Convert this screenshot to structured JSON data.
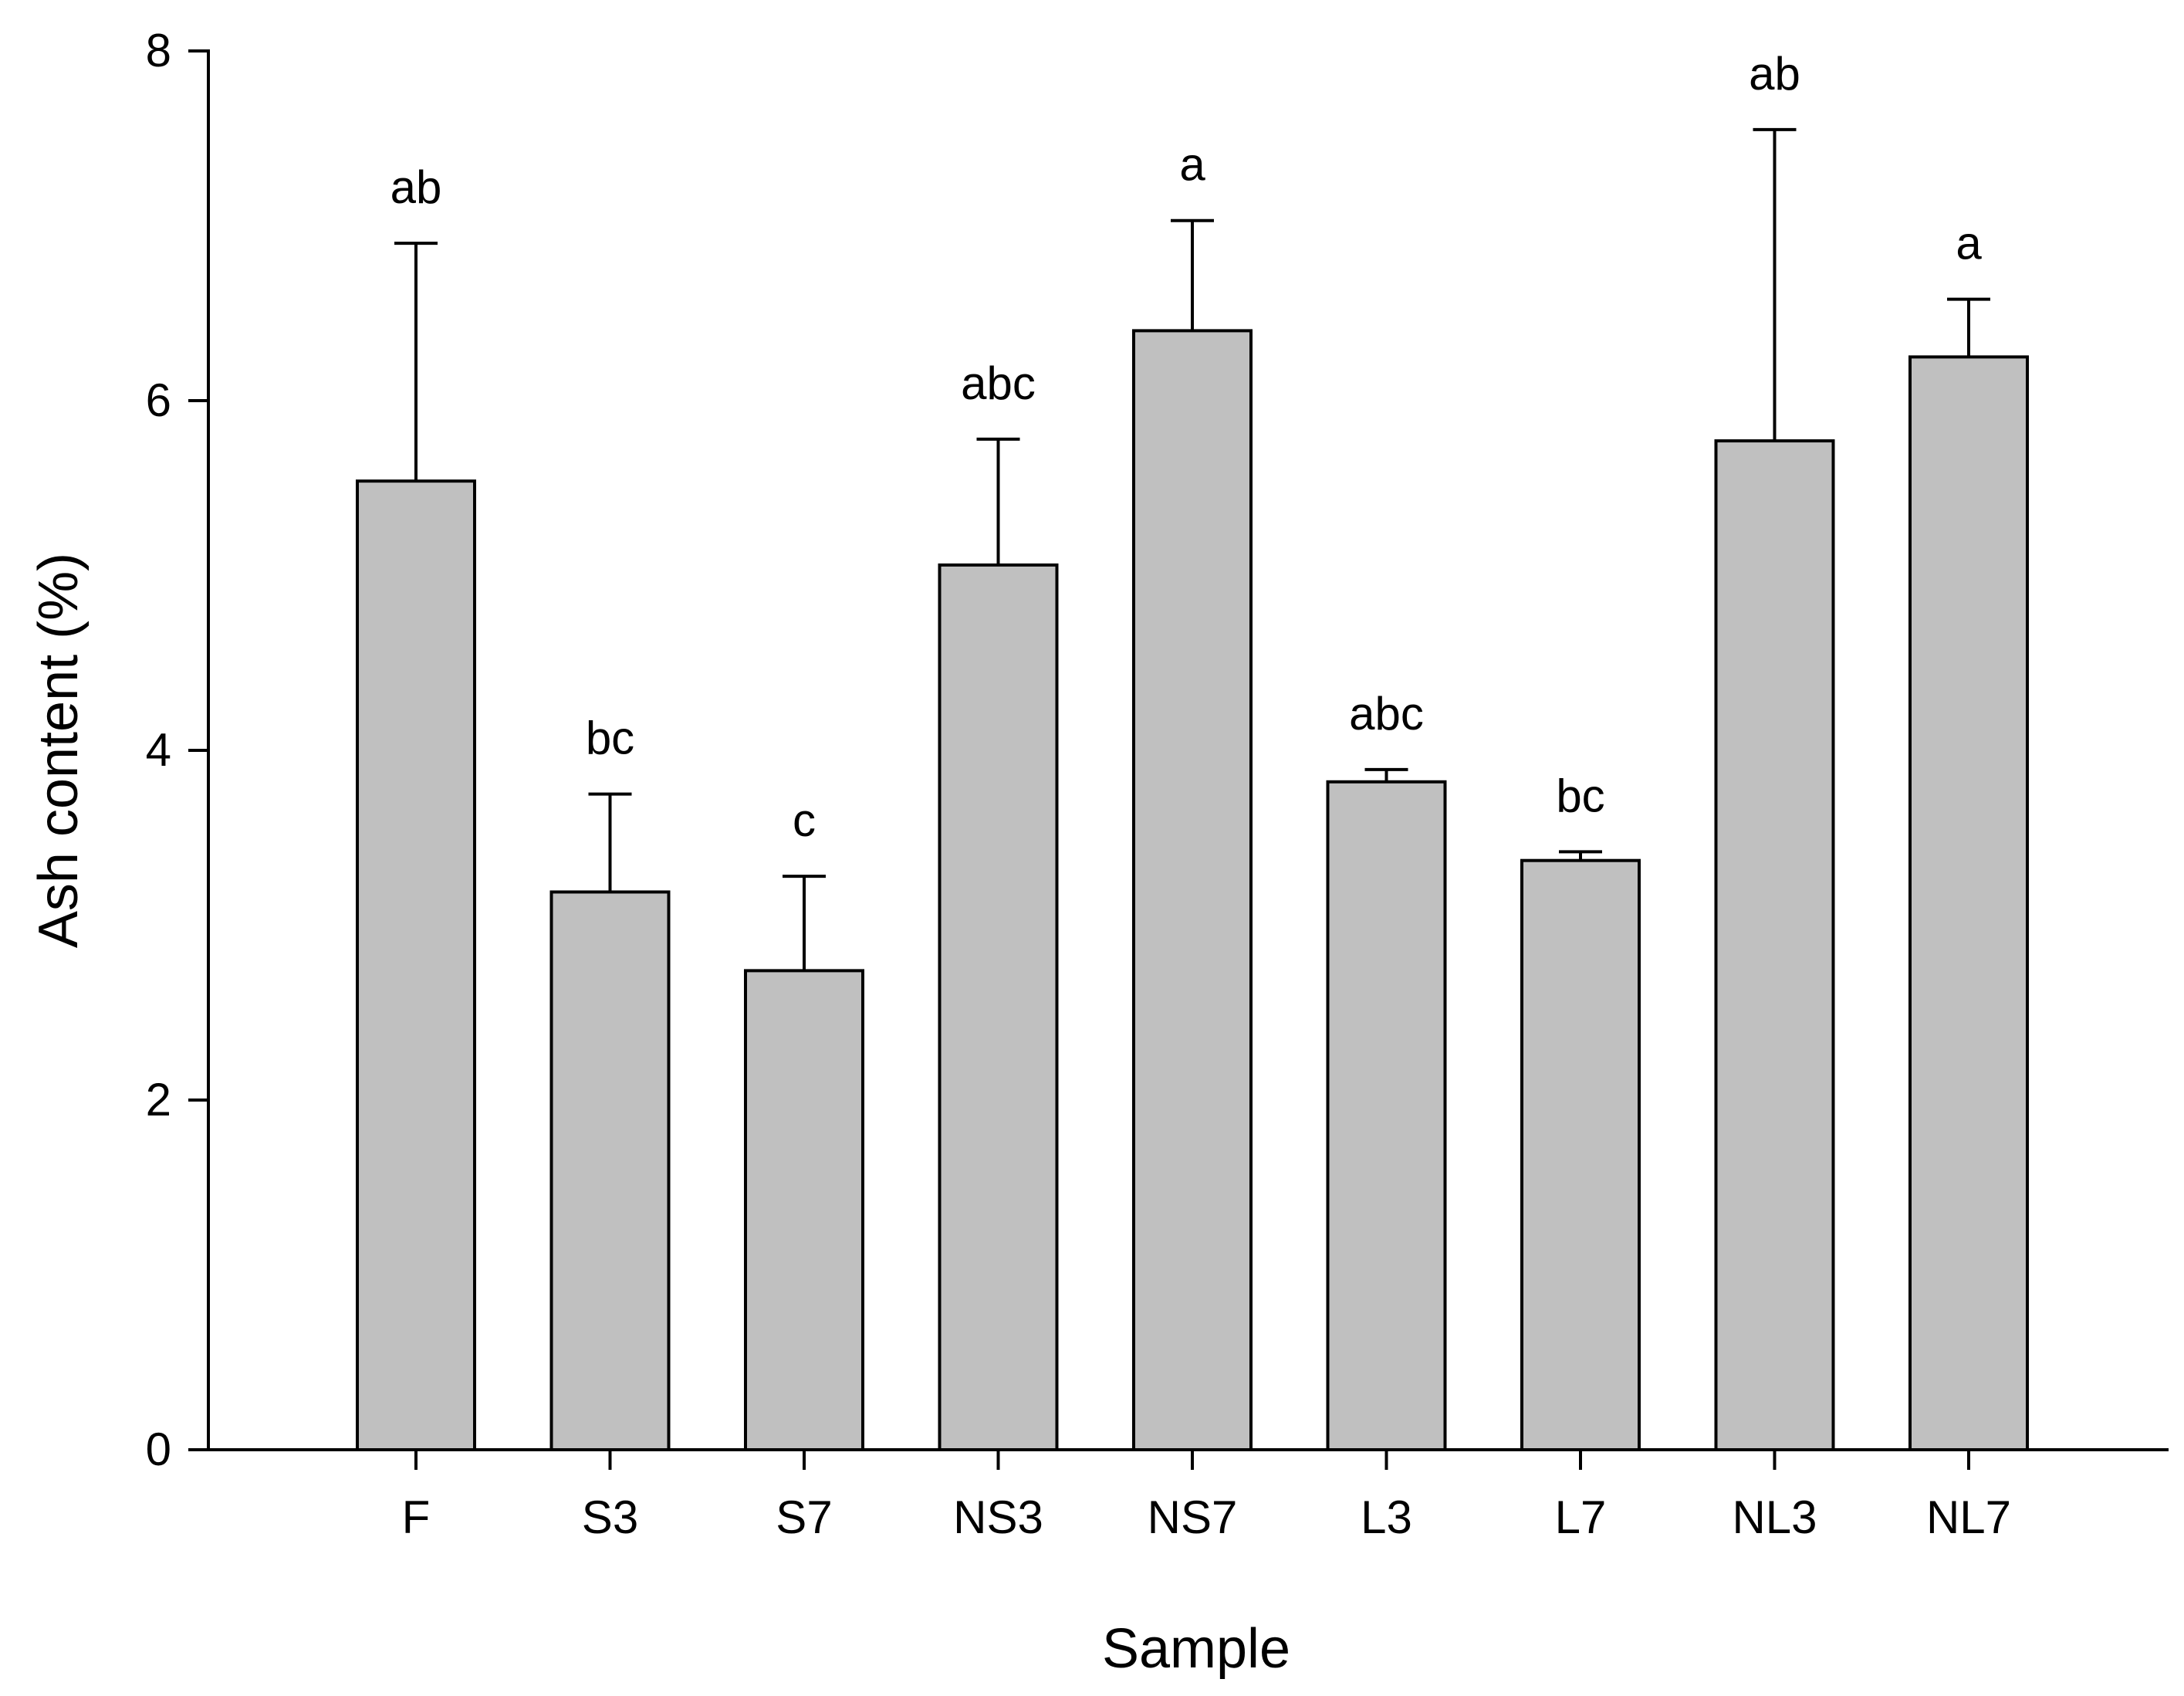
{
  "chart_data": {
    "type": "bar",
    "xlabel": "Sample",
    "ylabel": "Ash content (%)",
    "ylim": [
      0,
      8
    ],
    "y_ticks": [
      "0",
      "2",
      "4",
      "6",
      "8"
    ],
    "grid": false,
    "categories": [
      "F",
      "S3",
      "S7",
      "NS3",
      "NS7",
      "L3",
      "L7",
      "NL3",
      "NL7"
    ],
    "values": [
      5.54,
      3.19,
      2.74,
      5.06,
      6.4,
      3.82,
      3.37,
      5.77,
      6.25
    ],
    "error_upper": [
      1.36,
      0.56,
      0.54,
      0.72,
      0.63,
      0.07,
      0.05,
      1.78,
      0.33
    ],
    "significance_letters": [
      "ab",
      "bc",
      "c",
      "abc",
      "a",
      "abc",
      "bc",
      "ab",
      "a"
    ],
    "colors": {
      "bar_fill": "#c0c0c0",
      "bar_stroke": "#000000",
      "axis": "#000000"
    }
  }
}
